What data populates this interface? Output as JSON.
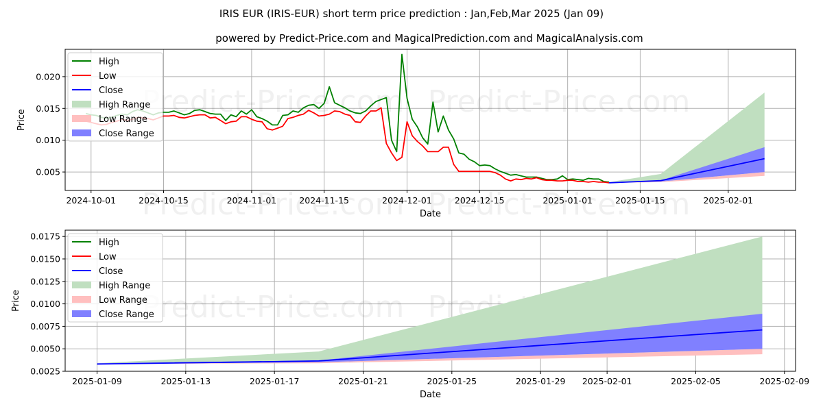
{
  "header": {
    "title": "IRIS EUR (IRIS-EUR) short term price prediction : Jan,Feb,Mar 2025 (Jan 09)",
    "subtitle": "powered by Predict-Price.com and MagicalPrediction.com and MagicalAnalysis.com"
  },
  "watermark": "Predict-Price.com",
  "colors": {
    "high": "#008000",
    "low": "#ff0000",
    "close": "#0000ff",
    "high_range": "#c0dfc0",
    "low_range": "#ffbfbf",
    "close_range": "#8080ff"
  },
  "forecast": {
    "dates": [
      "2025-01-09",
      "2025-01-19",
      "2025-02-08"
    ],
    "close": [
      0.0033,
      0.00365,
      0.0071
    ],
    "close_range_low": [
      0.0033,
      0.0035,
      0.005
    ],
    "close_range_high": [
      0.0034,
      0.0037,
      0.0089
    ],
    "low_range_low": [
      0.0033,
      0.0034,
      0.0044
    ],
    "high_range_high": [
      0.0034,
      0.0047,
      0.0175
    ]
  },
  "chart_data": [
    {
      "type": "line",
      "xlabel": "Date",
      "ylabel": "Price",
      "xlim": [
        "2024-09-26",
        "2025-02-14"
      ],
      "ylim": [
        0.0021,
        0.0243
      ],
      "grid": true,
      "legend_position": "top-left",
      "legend": [
        "High",
        "Low",
        "Close",
        "High Range",
        "Low Range",
        "Close Range"
      ],
      "xticks": [
        "2024-10-01",
        "2024-10-15",
        "2024-11-01",
        "2024-11-15",
        "2024-12-01",
        "2024-12-15",
        "2025-01-01",
        "2025-01-15",
        "2025-02-01"
      ],
      "yticks": [
        0.005,
        0.01,
        0.015,
        0.02
      ],
      "ytick_labels": [
        "0.005",
        "0.010",
        "0.015",
        "0.020"
      ],
      "history_start": "2024-09-30",
      "history_step_days": 1,
      "high": [
        0.0142,
        0.014,
        0.0139,
        0.0136,
        0.0134,
        0.0136,
        0.0139,
        0.0141,
        0.014,
        0.0145,
        0.0148,
        0.0146,
        0.0143,
        0.014,
        0.0143,
        0.0144,
        0.0144,
        0.0146,
        0.0143,
        0.014,
        0.0142,
        0.0147,
        0.0148,
        0.0145,
        0.0142,
        0.0141,
        0.0141,
        0.0131,
        0.014,
        0.0137,
        0.0146,
        0.0141,
        0.0148,
        0.0137,
        0.0134,
        0.013,
        0.0124,
        0.0124,
        0.0139,
        0.014,
        0.0146,
        0.0144,
        0.0151,
        0.0155,
        0.0156,
        0.015,
        0.0158,
        0.0184,
        0.0159,
        0.0155,
        0.0151,
        0.0146,
        0.0143,
        0.0142,
        0.0146,
        0.0154,
        0.0161,
        0.0164,
        0.0167,
        0.01,
        0.0082,
        0.0235,
        0.0166,
        0.0133,
        0.0121,
        0.0104,
        0.0094,
        0.016,
        0.0113,
        0.0138,
        0.0116,
        0.0102,
        0.008,
        0.0078,
        0.007,
        0.0066,
        0.006,
        0.0061,
        0.006,
        0.0055,
        0.0051,
        0.0048,
        0.0045,
        0.0046,
        0.0044,
        0.0042,
        0.0042,
        0.0042,
        0.004,
        0.0038,
        0.0038,
        0.0039,
        0.0044,
        0.0038,
        0.0039,
        0.0038,
        0.0037,
        0.004,
        0.0039,
        0.0039,
        0.0035,
        0.0034
      ],
      "low": [
        0.013,
        0.0128,
        0.0126,
        0.0124,
        0.0125,
        0.0128,
        0.013,
        0.0133,
        0.0131,
        0.0133,
        0.0136,
        0.0135,
        0.0134,
        0.0132,
        0.0135,
        0.0138,
        0.0138,
        0.0139,
        0.0136,
        0.0135,
        0.0137,
        0.0139,
        0.014,
        0.014,
        0.0135,
        0.0136,
        0.0131,
        0.0126,
        0.0129,
        0.013,
        0.0137,
        0.0137,
        0.0133,
        0.013,
        0.0129,
        0.0118,
        0.0116,
        0.0119,
        0.0122,
        0.0134,
        0.0136,
        0.0139,
        0.0141,
        0.0147,
        0.0143,
        0.0138,
        0.0139,
        0.0141,
        0.0146,
        0.0145,
        0.0141,
        0.0139,
        0.0129,
        0.0128,
        0.0138,
        0.0146,
        0.0146,
        0.0151,
        0.0095,
        0.008,
        0.0068,
        0.0073,
        0.0129,
        0.0107,
        0.0098,
        0.0091,
        0.0082,
        0.0082,
        0.0082,
        0.0089,
        0.0089,
        0.0062,
        0.0051,
        0.0051,
        0.0051,
        0.0051,
        0.0051,
        0.0051,
        0.0051,
        0.0049,
        0.0045,
        0.0039,
        0.0036,
        0.0039,
        0.0038,
        0.004,
        0.0039,
        0.0041,
        0.0038,
        0.0037,
        0.0037,
        0.0036,
        0.0036,
        0.0037,
        0.0037,
        0.0035,
        0.0035,
        0.0034,
        0.0035,
        0.0034,
        0.0034,
        0.0033
      ]
    },
    {
      "type": "area",
      "xlabel": "Date",
      "ylabel": "Price",
      "xlim": [
        "2025-01-07T13:30",
        "2025-02-09T12:00"
      ],
      "ylim": [
        0.0025,
        0.0182
      ],
      "grid": true,
      "legend_position": "top-left",
      "legend": [
        "High",
        "Low",
        "Close",
        "High Range",
        "Low Range",
        "Close Range"
      ],
      "xticks": [
        "2025-01-09",
        "2025-01-13",
        "2025-01-17",
        "2025-01-21",
        "2025-01-25",
        "2025-01-29",
        "2025-02-01",
        "2025-02-05",
        "2025-02-09"
      ],
      "yticks": [
        0.0025,
        0.005,
        0.0075,
        0.01,
        0.0125,
        0.015,
        0.0175
      ],
      "ytick_labels": [
        "0.0025",
        "0.0050",
        "0.0075",
        "0.0100",
        "0.0125",
        "0.0150",
        "0.0175"
      ]
    }
  ]
}
